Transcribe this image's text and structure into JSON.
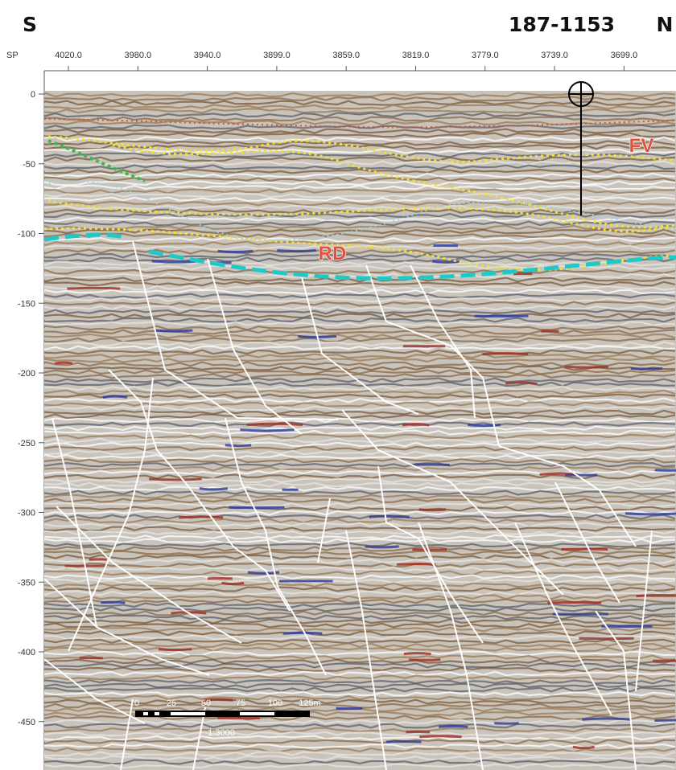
{
  "header": {
    "left": "S",
    "line_id": "187-1153",
    "right": "N"
  },
  "section": {
    "sp_label": "SP",
    "sp_ticks": [
      "4020.0",
      "3980.0",
      "3940.0",
      "3899.0",
      "3859.0",
      "3819.0",
      "3779.0",
      "3739.0",
      "3699.0"
    ],
    "depth_ticks": [
      0,
      -50,
      -100,
      -150,
      -200,
      -250,
      -300,
      -350,
      -400,
      -450
    ],
    "horizons": [
      "FV",
      "RD"
    ]
  },
  "scale_bar": {
    "labels": [
      "0",
      "25",
      "50",
      "75",
      "100",
      "125m"
    ],
    "ratio": "1:3000"
  }
}
